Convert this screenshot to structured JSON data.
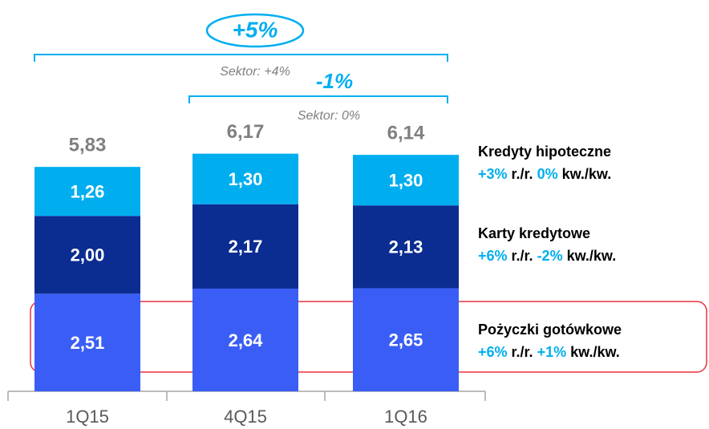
{
  "chart_data": {
    "type": "stacked_bar",
    "categories": [
      "1Q15",
      "4Q15",
      "1Q16"
    ],
    "series": [
      {
        "name": "Pożyczki gotówkowe",
        "color": "#3a5ef5",
        "values": [
          2.51,
          2.64,
          2.65
        ],
        "value_labels": [
          "2,51",
          "2,64",
          "2,65"
        ],
        "change_yoy": "+6%",
        "change_qoq": "+1%"
      },
      {
        "name": "Karty kredytowe",
        "color": "#0b2c91",
        "values": [
          2.0,
          2.17,
          2.13
        ],
        "value_labels": [
          "2,00",
          "2,17",
          "2,13"
        ],
        "change_yoy": "+6%",
        "change_qoq": "-2%"
      },
      {
        "name": "Kredyty hipoteczne",
        "color": "#00aeef",
        "values": [
          1.26,
          1.3,
          1.3
        ],
        "value_labels": [
          "1,26",
          "1,30",
          "1,30"
        ],
        "change_yoy": "+3%",
        "change_qoq": "0%"
      }
    ],
    "totals": [
      5.83,
      6.17,
      6.14
    ],
    "total_labels": [
      "5,83",
      "6,17",
      "6,14"
    ],
    "yoy_label": "r./r.",
    "qoq_label": "kw./kw.",
    "annotations": {
      "growth_long": "+5%",
      "sector_long": "Sektor: +4%",
      "growth_short": "-1%",
      "sector_short": "Sektor: 0%"
    },
    "ylim": [
      0,
      10
    ]
  }
}
